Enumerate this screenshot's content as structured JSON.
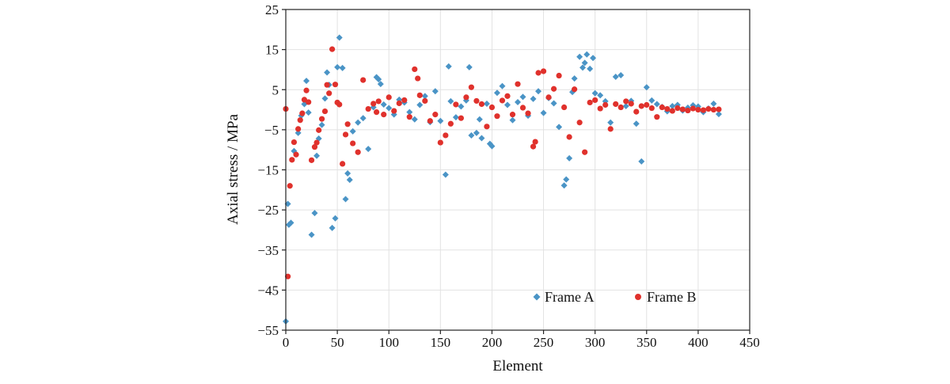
{
  "chart_data": {
    "type": "scatter",
    "title": "",
    "xlabel": "Element",
    "ylabel": "Axial stress / MPa",
    "xlim": [
      0,
      450
    ],
    "ylim": [
      -55,
      25
    ],
    "x_ticks": [
      "0",
      "50",
      "100",
      "150",
      "200",
      "250",
      "300",
      "350",
      "400",
      "450"
    ],
    "y_ticks": [
      "25",
      "15",
      "5",
      "−5",
      "−15",
      "−25",
      "−35",
      "−45",
      "−55"
    ],
    "grid": true,
    "legend_position": "lower-right",
    "series": [
      {
        "name": "Frame A",
        "marker": "diamond",
        "color": "#4a94c6",
        "x": [
          0,
          2,
          3,
          5,
          8,
          12,
          15,
          18,
          20,
          22,
          25,
          28,
          30,
          32,
          35,
          38,
          40,
          42,
          45,
          48,
          50,
          52,
          55,
          58,
          60,
          62,
          65,
          70,
          75,
          80,
          85,
          88,
          90,
          92,
          95,
          100,
          105,
          110,
          115,
          120,
          125,
          130,
          135,
          140,
          145,
          150,
          155,
          158,
          160,
          165,
          170,
          175,
          178,
          180,
          185,
          188,
          190,
          195,
          198,
          200,
          205,
          210,
          215,
          220,
          225,
          230,
          235,
          240,
          245,
          250,
          255,
          260,
          265,
          270,
          272,
          275,
          278,
          280,
          285,
          288,
          290,
          292,
          295,
          298,
          300,
          305,
          310,
          315,
          320,
          325,
          330,
          335,
          340,
          345,
          350,
          355,
          360,
          365,
          370,
          375,
          380,
          385,
          390,
          395,
          400,
          405,
          410,
          415,
          420
        ],
        "y": [
          -52.8,
          -23.5,
          -28.7,
          -28.2,
          -10.3,
          -5.8,
          -1.5,
          1.4,
          7.2,
          -0.7,
          -31.2,
          -25.8,
          -11.5,
          -7.2,
          -3.8,
          2.8,
          9.3,
          6.2,
          -29.5,
          -27.1,
          10.6,
          18.0,
          10.4,
          -22.3,
          -15.9,
          -17.5,
          -5.4,
          -3.2,
          -2.1,
          -9.8,
          0.6,
          8.1,
          7.6,
          6.4,
          1.3,
          0.4,
          -1.2,
          2.5,
          1.8,
          -0.6,
          -2.4,
          1.2,
          3.4,
          -3.1,
          4.6,
          -2.8,
          -16.2,
          10.8,
          2.1,
          -1.9,
          0.8,
          2.3,
          10.6,
          -6.4,
          -5.8,
          -2.4,
          -7.1,
          1.5,
          -8.5,
          -9.1,
          4.2,
          5.9,
          1.2,
          -2.6,
          1.9,
          3.2,
          -1.5,
          2.7,
          4.6,
          -0.8,
          2.9,
          1.6,
          -4.3,
          -18.9,
          -17.4,
          -12.1,
          4.4,
          7.8,
          13.2,
          10.5,
          11.7,
          13.8,
          10.2,
          12.9,
          4.1,
          3.6,
          2.1,
          -3.2,
          8.2,
          8.6,
          0.9,
          2.2,
          -3.5,
          -12.9,
          5.6,
          2.3,
          1.4,
          0.7,
          -0.4,
          0.9,
          1.2,
          -0.2,
          0.5,
          1.1,
          0.8,
          -0.6,
          0.3,
          1.5,
          -1.1
        ]
      },
      {
        "name": "Frame B",
        "marker": "circle",
        "color": "#e0312c",
        "x": [
          0,
          2,
          4,
          6,
          8,
          10,
          12,
          14,
          16,
          18,
          20,
          22,
          25,
          28,
          30,
          32,
          35,
          38,
          40,
          42,
          45,
          48,
          50,
          52,
          55,
          58,
          60,
          65,
          70,
          75,
          80,
          85,
          88,
          90,
          95,
          100,
          105,
          110,
          115,
          120,
          125,
          128,
          130,
          135,
          140,
          145,
          150,
          155,
          160,
          165,
          170,
          175,
          180,
          185,
          190,
          195,
          200,
          205,
          210,
          215,
          220,
          225,
          230,
          235,
          240,
          242,
          245,
          250,
          255,
          260,
          265,
          270,
          275,
          280,
          285,
          290,
          295,
          300,
          305,
          310,
          315,
          320,
          325,
          330,
          335,
          340,
          345,
          350,
          355,
          360,
          365,
          370,
          375,
          380,
          385,
          390,
          395,
          400,
          405,
          410,
          415,
          420
        ],
        "y": [
          0.2,
          -41.6,
          -19.0,
          -12.5,
          -8.1,
          -11.2,
          -4.8,
          -2.6,
          -0.9,
          2.5,
          4.8,
          1.9,
          -12.6,
          -9.3,
          -8.2,
          -5.1,
          -2.3,
          -0.4,
          6.2,
          4.1,
          15.1,
          6.3,
          1.8,
          1.3,
          -13.5,
          -6.2,
          -3.6,
          -8.4,
          -10.6,
          7.4,
          0.2,
          1.5,
          -0.6,
          2.1,
          -1.2,
          3.1,
          -0.3,
          1.6,
          2.4,
          -1.8,
          10.1,
          7.8,
          3.6,
          2.2,
          -2.8,
          -1.2,
          -8.2,
          -6.4,
          -3.5,
          1.3,
          -2.1,
          3.1,
          5.6,
          2.2,
          1.4,
          -4.2,
          0.6,
          -1.6,
          2.3,
          3.4,
          -1.2,
          6.4,
          0.5,
          -0.9,
          -9.2,
          -8.0,
          9.2,
          9.6,
          3.1,
          5.2,
          8.5,
          0.6,
          -6.8,
          5.1,
          -3.2,
          -10.6,
          1.8,
          2.4,
          0.3,
          1.2,
          -4.8,
          1.4,
          0.6,
          2.1,
          1.5,
          -0.5,
          0.9,
          1.2,
          0.4,
          -1.8,
          0.6,
          0.2,
          -0.3,
          0.4,
          0.1,
          -0.2,
          0.3,
          0.0,
          -0.1,
          0.2,
          0.0,
          0.1
        ]
      }
    ]
  }
}
